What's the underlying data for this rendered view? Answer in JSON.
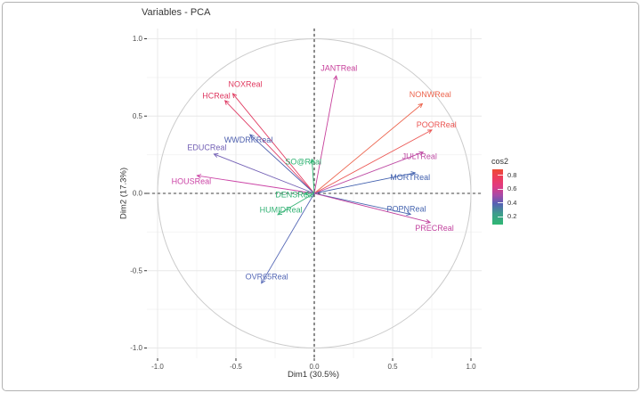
{
  "chart_data": {
    "type": "scatter",
    "subtype": "pca-variables-correlation-circle",
    "title": "Variables - PCA",
    "xlabel": "Dim1 (30.5%)",
    "ylabel": "Dim2 (17.3%)",
    "xlim": [
      -1.07,
      1.07
    ],
    "ylim": [
      -1.07,
      1.07
    ],
    "grid": true,
    "unit_circle": true,
    "zero_lines_dashed": true,
    "x_ticks": [
      {
        "label": "-1.0",
        "value": -1.0
      },
      {
        "label": "-0.5",
        "value": -0.5
      },
      {
        "label": "0.0",
        "value": 0.0
      },
      {
        "label": "0.5",
        "value": 0.5
      },
      {
        "label": "1.0",
        "value": 1.0
      }
    ],
    "y_ticks": [
      {
        "label": "1.0",
        "value": 1.0
      },
      {
        "label": "0.5",
        "value": 0.5
      },
      {
        "label": "0.0",
        "value": 0.0
      },
      {
        "label": "-0.5",
        "value": -0.5
      },
      {
        "label": "-1.0",
        "value": -1.0
      }
    ],
    "variables": [
      {
        "name": "NOXReal",
        "x": -0.52,
        "y": 0.645,
        "label_x": -0.44,
        "label_y": 0.705,
        "color": "#e13a60"
      },
      {
        "name": "HCReal",
        "x": -0.57,
        "y": 0.6,
        "label_x": -0.625,
        "label_y": 0.63,
        "color": "#de3a63"
      },
      {
        "name": "JANTReal",
        "x": 0.14,
        "y": 0.76,
        "label_x": 0.158,
        "label_y": 0.81,
        "color": "#c7409b"
      },
      {
        "name": "NONWReal",
        "x": 0.69,
        "y": 0.58,
        "label_x": 0.74,
        "label_y": 0.64,
        "color": "#ec654e"
      },
      {
        "name": "POORReal",
        "x": 0.75,
        "y": 0.41,
        "label_x": 0.78,
        "label_y": 0.445,
        "color": "#eb5653"
      },
      {
        "name": "WWDRKReal",
        "x": -0.41,
        "y": 0.38,
        "label_x": -0.42,
        "label_y": 0.347,
        "color": "#4e60ae"
      },
      {
        "name": "EDUCReal",
        "x": -0.64,
        "y": 0.254,
        "label_x": -0.685,
        "label_y": 0.296,
        "color": "#7360b5"
      },
      {
        "name": "SO@Real",
        "x": -0.015,
        "y": 0.221,
        "label_x": -0.07,
        "label_y": 0.206,
        "color": "#2eb271"
      },
      {
        "name": "HOUSReal",
        "x": -0.748,
        "y": 0.115,
        "label_x": -0.785,
        "label_y": 0.078,
        "color": "#cb44a6"
      },
      {
        "name": "DENSReal",
        "x": -0.062,
        "y": 0.0,
        "label_x": -0.125,
        "label_y": -0.008,
        "color": "#2eb271"
      },
      {
        "name": "HUMIDReal",
        "x": -0.233,
        "y": -0.137,
        "label_x": -0.212,
        "label_y": -0.106,
        "color": "#36b376"
      },
      {
        "name": "MORTReal",
        "x": 0.644,
        "y": 0.133,
        "label_x": 0.612,
        "label_y": 0.104,
        "color": "#4160ae"
      },
      {
        "name": "JULTReal",
        "x": 0.695,
        "y": 0.267,
        "label_x": 0.672,
        "label_y": 0.24,
        "color": "#bf4da5"
      },
      {
        "name": "POPNReal",
        "x": 0.615,
        "y": -0.135,
        "label_x": 0.588,
        "label_y": -0.1,
        "color": "#4766b0"
      },
      {
        "name": "PRECReal",
        "x": 0.739,
        "y": -0.188,
        "label_x": 0.767,
        "label_y": -0.225,
        "color": "#c2439f"
      },
      {
        "name": "OVR65Real",
        "x": -0.337,
        "y": -0.581,
        "label_x": -0.303,
        "label_y": -0.538,
        "color": "#5568b6"
      }
    ],
    "legend": {
      "title": "cos2",
      "vmin": 0.08,
      "vmax": 0.88,
      "ticks": [
        {
          "label": "0.8",
          "value": 0.8
        },
        {
          "label": "0.6",
          "value": 0.6
        },
        {
          "label": "0.4",
          "value": 0.4
        },
        {
          "label": "0.2",
          "value": 0.2
        }
      ],
      "gradient_stops": [
        "#ed4a33 0%",
        "#ee3e57 13%",
        "#e23a80 30%",
        "#a74ba8 47%",
        "#5560b4 62%",
        "#3e9c8c 80%",
        "#2fb873 100%"
      ]
    },
    "style_colors": {
      "grid_major": "#e8e8e8",
      "grid_minor": "#f5f5f5",
      "circle": "#cbcbcb",
      "zero_line": "#404040",
      "axis_text": "#4d4d4d",
      "tick_mark": "#333333"
    }
  }
}
